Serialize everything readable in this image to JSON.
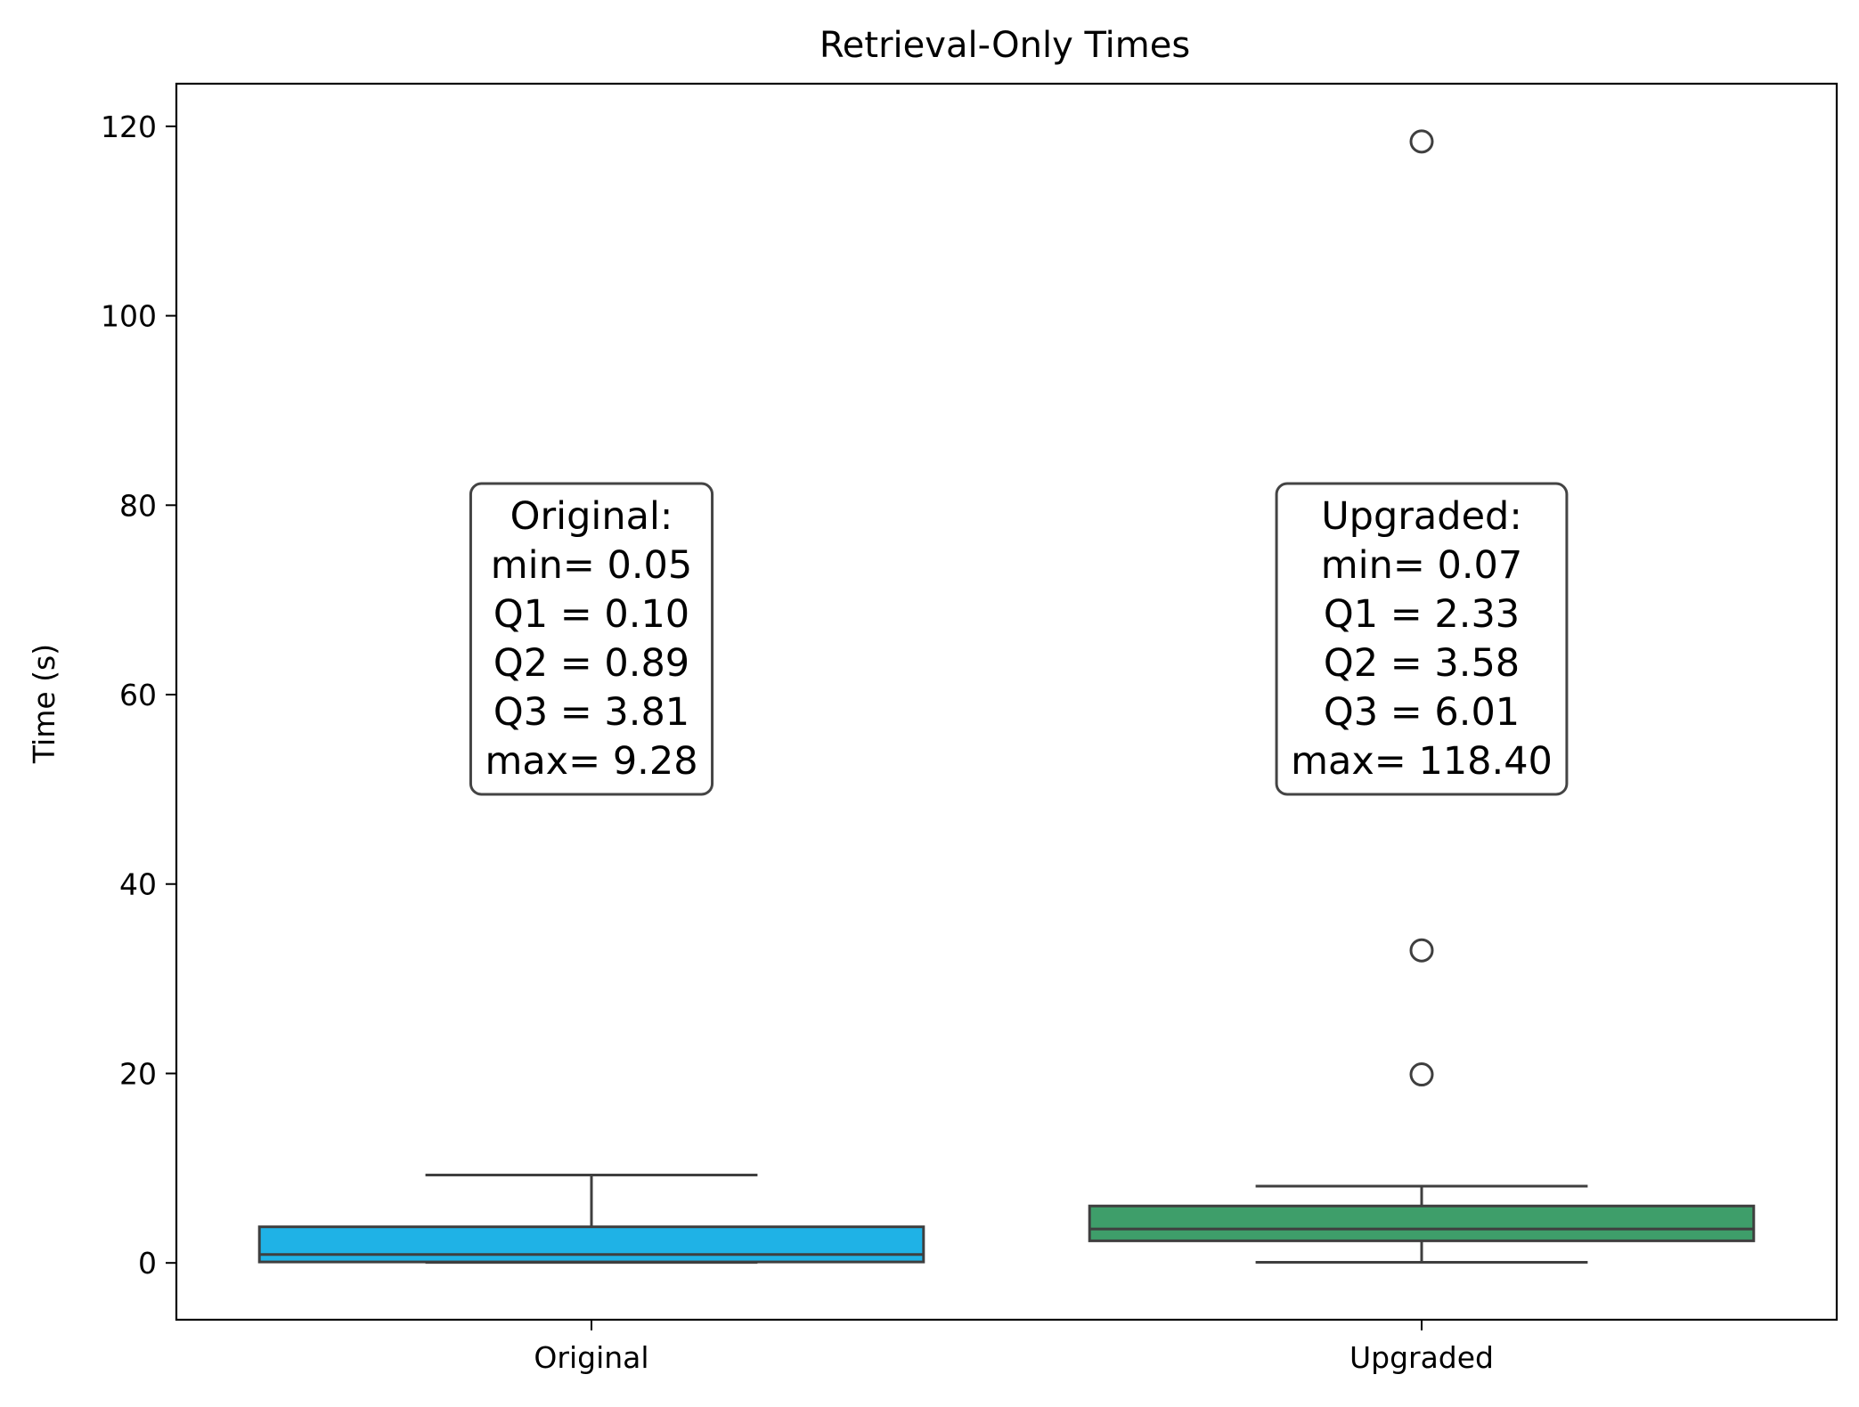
{
  "chart_data": {
    "type": "box",
    "title": "Retrieval-Only Times",
    "xlabel": "",
    "ylabel": "Time (s)",
    "ylim": [
      -6,
      124.5
    ],
    "yticks": [
      0,
      20,
      40,
      60,
      80,
      100,
      120
    ],
    "grid": false,
    "categories": [
      "Original",
      "Upgraded"
    ],
    "boxes": [
      {
        "category": "Original",
        "color": "#1fb2e6",
        "whisker_low": 0.05,
        "q1": 0.1,
        "median": 0.89,
        "q3": 3.81,
        "whisker_high": 9.28,
        "outliers": []
      },
      {
        "category": "Upgraded",
        "color": "#3e9e6a",
        "whisker_low": 0.07,
        "q1": 2.33,
        "median": 3.58,
        "q3": 6.01,
        "whisker_high": 8.1,
        "outliers": [
          19.9,
          33.0,
          118.4
        ]
      }
    ],
    "annotations": [
      {
        "category": "Original",
        "lines": [
          "Original:",
          "min= 0.05",
          "Q1 = 0.10",
          "Q2 = 0.89",
          "Q3 = 3.81",
          "max= 9.28"
        ]
      },
      {
        "category": "Upgraded",
        "lines": [
          "Upgraded:",
          "min= 0.07",
          "Q1 = 2.33",
          "Q2 = 3.58",
          "Q3 = 6.01",
          "max= 118.40"
        ]
      }
    ]
  }
}
